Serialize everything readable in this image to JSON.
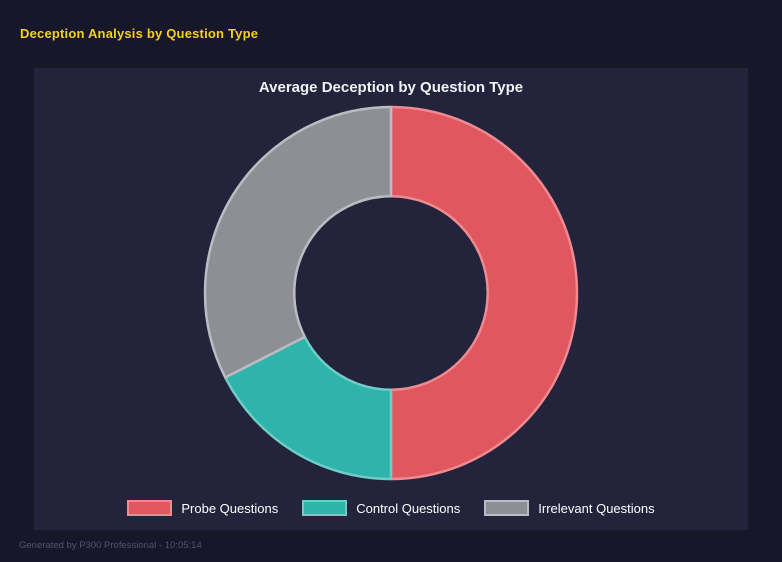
{
  "header": {
    "title": "Deception Analysis by Question Type"
  },
  "chart_data": {
    "type": "pie",
    "subtype": "doughnut",
    "title": "Average Deception by Question Type",
    "labels": [
      "Probe Questions",
      "Control Questions",
      "Irrelevant Questions"
    ],
    "values": [
      50,
      17.5,
      32.5
    ],
    "colors": [
      "#e0575f",
      "#2fb3ab",
      "#8e8e95"
    ],
    "border_colors": [
      "#ef8a91",
      "#6fcdc7",
      "#bbbbc1"
    ],
    "start_angle_deg": 0,
    "hole_ratio": 0.52,
    "legend_position": "bottom",
    "grid": false
  },
  "footer": {
    "text": "Generated by P300 Professional - 10:05:14"
  },
  "theme": {
    "page_bg": "#17172a",
    "panel_bg": "#23233c",
    "header_color": "#f5d020",
    "title_color": "#f2f2f5",
    "legend_text_color": "#ffffff",
    "footer_color": "#53536a"
  }
}
